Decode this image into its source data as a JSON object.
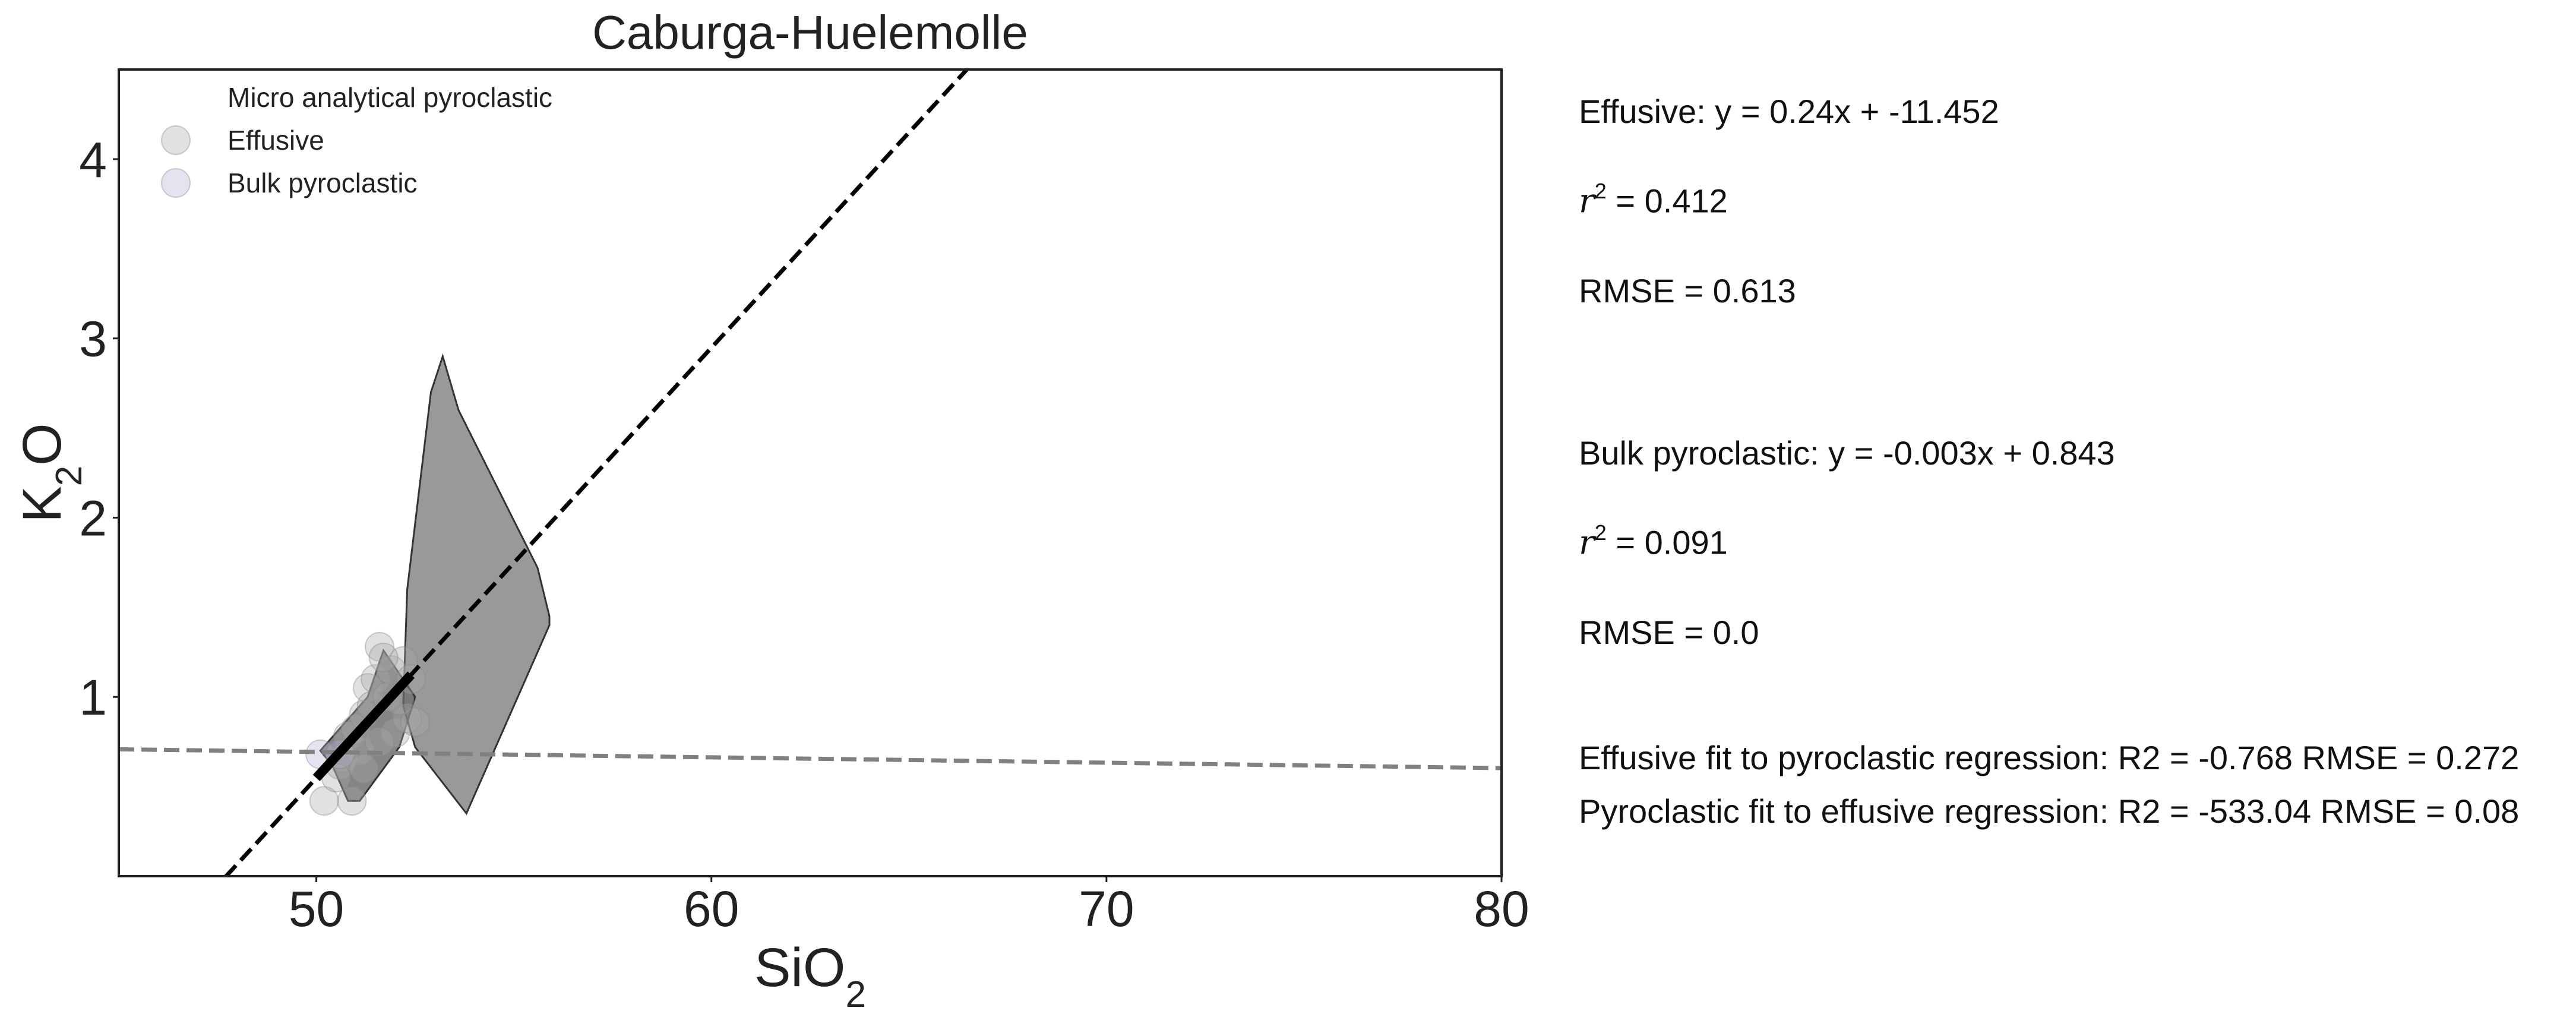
{
  "chart_data": {
    "type": "scatter",
    "title": "Caburga-Huelemolle",
    "xlabel": "SiO2",
    "ylabel": "K2O",
    "xlim": [
      45,
      80
    ],
    "ylim": [
      0,
      4.5
    ],
    "xticks": [
      50,
      60,
      70,
      80
    ],
    "yticks": [
      1,
      2,
      3,
      4
    ],
    "grid": false,
    "legend_position": "upper-left",
    "legend": [
      "Micro analytical pyroclastic",
      "Effusive",
      "Bulk pyroclastic"
    ],
    "series": [
      {
        "name": "Effusive",
        "kind": "points",
        "color": "#aaaaaa",
        "x": [
          50.2,
          50.9,
          50.6,
          50.8,
          51.0,
          51.2,
          51.3,
          51.5,
          51.6,
          51.4,
          51.8,
          51.9,
          52.0,
          52.2,
          52.4,
          52.3,
          51.1,
          50.7,
          51.7,
          52.1,
          52.5,
          50.5,
          51.2,
          51.6
        ],
        "y": [
          0.42,
          0.42,
          0.62,
          0.78,
          0.82,
          0.9,
          1.05,
          1.1,
          1.28,
          0.95,
          1.0,
          1.15,
          0.8,
          1.2,
          1.1,
          0.88,
          0.7,
          0.66,
          1.22,
          0.98,
          0.86,
          0.55,
          0.6,
          0.75
        ]
      },
      {
        "name": "Bulk pyroclastic",
        "kind": "points",
        "color": "#b8b0d8",
        "x": [
          50.1,
          50.6
        ],
        "y": [
          0.68,
          0.68
        ]
      },
      {
        "name": "Micro analytical pyroclastic",
        "kind": "hull",
        "color": "#555555",
        "x": [
          52.3,
          52.9,
          53.2,
          53.6,
          55.6,
          55.9,
          55.9,
          53.8,
          52.5,
          52.2
        ],
        "y": [
          1.6,
          2.7,
          2.9,
          2.6,
          1.72,
          1.45,
          1.4,
          0.35,
          0.72,
          0.95
        ]
      },
      {
        "name": "Effusive hull",
        "kind": "hull",
        "color": "#333333",
        "x": [
          51.3,
          51.7,
          52.5,
          52.1,
          51.1,
          50.8,
          50.4,
          50.1
        ],
        "y": [
          1.0,
          1.26,
          1.0,
          0.72,
          0.42,
          0.42,
          0.62,
          0.7
        ]
      }
    ],
    "fits": [
      {
        "name": "Effusive",
        "slope": 0.24,
        "intercept": -11.452,
        "x_range": [
          47.7,
          66.6
        ],
        "style": "dashed",
        "color": "#000000"
      },
      {
        "name": "Bulk pyroclastic",
        "slope": -0.003,
        "intercept": 0.843,
        "x_range": [
          45,
          80
        ],
        "style": "dashed",
        "color": "#808080"
      },
      {
        "name": "Effusive trend",
        "slope": 0.24,
        "intercept": -11.452,
        "x_range": [
          50.0,
          52.4
        ],
        "style": "solid",
        "color": "#000000"
      }
    ]
  },
  "stats": {
    "effusive_eq": "Effusive: y = 0.24x + -11.452",
    "effusive_r2_symbol": "r",
    "effusive_r2_exp": "2",
    "effusive_r2_value": " = 0.412",
    "effusive_rmse": "RMSE = 0.613",
    "bulk_eq": "Bulk pyroclastic: y = -0.003x + 0.843",
    "bulk_r2_symbol": "r",
    "bulk_r2_exp": "2",
    "bulk_r2_value": " = 0.091",
    "bulk_rmse": "RMSE = 0.0",
    "cross_fit_1": "Effusive fit to pyroclastic regression: R2 = -0.768 RMSE = 0.272",
    "cross_fit_2": "Pyroclastic fit to effusive regression: R2 = -533.04 RMSE = 0.08"
  }
}
